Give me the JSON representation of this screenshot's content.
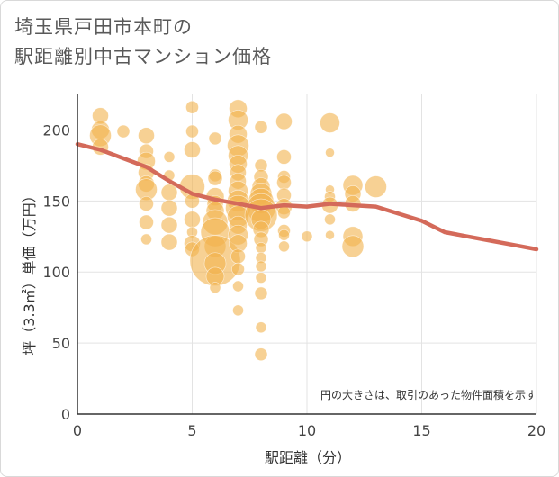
{
  "title_lines": [
    "埼玉県戸田市本町の",
    "駅距離別中古マンション価格"
  ],
  "note": "円の大きさは、取引のあった物件面積を示す",
  "colors": {
    "bubble": "#f2b24c",
    "line": "#d46a5a",
    "grid": "#e3e3e3",
    "axis": "#333333"
  },
  "chart_data": {
    "type": "scatter",
    "xlabel": "駅距離（分）",
    "ylabel": "坪（3.3㎡）単価（万円）",
    "xlim": [
      0,
      20
    ],
    "ylim": [
      0,
      225
    ],
    "x_ticks": [
      0,
      5,
      10,
      15,
      20
    ],
    "y_ticks": [
      0,
      50,
      100,
      150,
      200
    ],
    "grid": true,
    "bubbles": [
      {
        "x": 1,
        "y": 210,
        "r": 9
      },
      {
        "x": 1,
        "y": 200,
        "r": 10
      },
      {
        "x": 1,
        "y": 196,
        "r": 12
      },
      {
        "x": 1,
        "y": 188,
        "r": 9
      },
      {
        "x": 2,
        "y": 199,
        "r": 7
      },
      {
        "x": 3,
        "y": 196,
        "r": 9
      },
      {
        "x": 3,
        "y": 185,
        "r": 8
      },
      {
        "x": 3,
        "y": 178,
        "r": 10
      },
      {
        "x": 3,
        "y": 170,
        "r": 9
      },
      {
        "x": 3,
        "y": 162,
        "r": 9
      },
      {
        "x": 3,
        "y": 158,
        "r": 12
      },
      {
        "x": 3,
        "y": 148,
        "r": 8
      },
      {
        "x": 3,
        "y": 135,
        "r": 8
      },
      {
        "x": 3,
        "y": 123,
        "r": 6
      },
      {
        "x": 4,
        "y": 181,
        "r": 6
      },
      {
        "x": 4,
        "y": 168,
        "r": 6
      },
      {
        "x": 4,
        "y": 156,
        "r": 9
      },
      {
        "x": 4,
        "y": 145,
        "r": 9
      },
      {
        "x": 4,
        "y": 133,
        "r": 9
      },
      {
        "x": 4,
        "y": 121,
        "r": 9
      },
      {
        "x": 5,
        "y": 216,
        "r": 7
      },
      {
        "x": 5,
        "y": 199,
        "r": 7
      },
      {
        "x": 5,
        "y": 186,
        "r": 9
      },
      {
        "x": 5,
        "y": 160,
        "r": 14
      },
      {
        "x": 5,
        "y": 150,
        "r": 8
      },
      {
        "x": 5,
        "y": 137,
        "r": 9
      },
      {
        "x": 5,
        "y": 128,
        "r": 6
      },
      {
        "x": 5,
        "y": 120,
        "r": 9
      },
      {
        "x": 5,
        "y": 116,
        "r": 8
      },
      {
        "x": 6,
        "y": 194,
        "r": 7
      },
      {
        "x": 6,
        "y": 168,
        "r": 7
      },
      {
        "x": 6,
        "y": 166,
        "r": 8
      },
      {
        "x": 6,
        "y": 153,
        "r": 10
      },
      {
        "x": 6,
        "y": 148,
        "r": 9
      },
      {
        "x": 6,
        "y": 143,
        "r": 10
      },
      {
        "x": 6,
        "y": 135,
        "r": 14
      },
      {
        "x": 6,
        "y": 128,
        "r": 16
      },
      {
        "x": 6,
        "y": 118,
        "r": 12
      },
      {
        "x": 6,
        "y": 108,
        "r": 28
      },
      {
        "x": 6,
        "y": 106,
        "r": 12
      },
      {
        "x": 6,
        "y": 97,
        "r": 10
      },
      {
        "x": 6,
        "y": 89,
        "r": 6
      },
      {
        "x": 7,
        "y": 215,
        "r": 10
      },
      {
        "x": 7,
        "y": 207,
        "r": 11
      },
      {
        "x": 7,
        "y": 197,
        "r": 10
      },
      {
        "x": 7,
        "y": 189,
        "r": 12
      },
      {
        "x": 7,
        "y": 182,
        "r": 11
      },
      {
        "x": 7,
        "y": 176,
        "r": 10
      },
      {
        "x": 7,
        "y": 170,
        "r": 9
      },
      {
        "x": 7,
        "y": 164,
        "r": 9
      },
      {
        "x": 7,
        "y": 157,
        "r": 11
      },
      {
        "x": 7,
        "y": 150,
        "r": 12
      },
      {
        "x": 7,
        "y": 145,
        "r": 14
      },
      {
        "x": 7,
        "y": 139,
        "r": 12
      },
      {
        "x": 7,
        "y": 133,
        "r": 10
      },
      {
        "x": 7,
        "y": 126,
        "r": 11
      },
      {
        "x": 7,
        "y": 120,
        "r": 10
      },
      {
        "x": 7,
        "y": 111,
        "r": 8
      },
      {
        "x": 7,
        "y": 102,
        "r": 7
      },
      {
        "x": 7,
        "y": 90,
        "r": 6
      },
      {
        "x": 7,
        "y": 73,
        "r": 6
      },
      {
        "x": 8,
        "y": 202,
        "r": 7
      },
      {
        "x": 8,
        "y": 175,
        "r": 7
      },
      {
        "x": 8,
        "y": 167,
        "r": 8
      },
      {
        "x": 8,
        "y": 160,
        "r": 10
      },
      {
        "x": 8,
        "y": 155,
        "r": 12
      },
      {
        "x": 8,
        "y": 150,
        "r": 14
      },
      {
        "x": 8,
        "y": 145,
        "r": 16
      },
      {
        "x": 8,
        "y": 140,
        "r": 18
      },
      {
        "x": 8,
        "y": 137,
        "r": 11
      },
      {
        "x": 8,
        "y": 130,
        "r": 9
      },
      {
        "x": 8,
        "y": 123,
        "r": 8
      },
      {
        "x": 8,
        "y": 117,
        "r": 6
      },
      {
        "x": 8,
        "y": 110,
        "r": 6
      },
      {
        "x": 8,
        "y": 104,
        "r": 6
      },
      {
        "x": 8,
        "y": 96,
        "r": 6
      },
      {
        "x": 8,
        "y": 85,
        "r": 7
      },
      {
        "x": 8,
        "y": 61,
        "r": 6
      },
      {
        "x": 8,
        "y": 42,
        "r": 7
      },
      {
        "x": 9,
        "y": 206,
        "r": 9
      },
      {
        "x": 9,
        "y": 181,
        "r": 8
      },
      {
        "x": 9,
        "y": 167,
        "r": 7
      },
      {
        "x": 9,
        "y": 163,
        "r": 8
      },
      {
        "x": 9,
        "y": 154,
        "r": 8
      },
      {
        "x": 9,
        "y": 146,
        "r": 9
      },
      {
        "x": 9,
        "y": 142,
        "r": 7
      },
      {
        "x": 9,
        "y": 129,
        "r": 7
      },
      {
        "x": 9,
        "y": 126,
        "r": 6
      },
      {
        "x": 9,
        "y": 118,
        "r": 6
      },
      {
        "x": 10,
        "y": 125,
        "r": 6
      },
      {
        "x": 11,
        "y": 205,
        "r": 11
      },
      {
        "x": 11,
        "y": 184,
        "r": 5
      },
      {
        "x": 11,
        "y": 158,
        "r": 5
      },
      {
        "x": 11,
        "y": 153,
        "r": 6
      },
      {
        "x": 11,
        "y": 147,
        "r": 9
      },
      {
        "x": 11,
        "y": 137,
        "r": 6
      },
      {
        "x": 11,
        "y": 126,
        "r": 5
      },
      {
        "x": 12,
        "y": 161,
        "r": 11
      },
      {
        "x": 12,
        "y": 155,
        "r": 9
      },
      {
        "x": 12,
        "y": 148,
        "r": 9
      },
      {
        "x": 12,
        "y": 125,
        "r": 11
      },
      {
        "x": 12,
        "y": 118,
        "r": 12
      },
      {
        "x": 13,
        "y": 160,
        "r": 12
      }
    ],
    "trend_line": {
      "x": [
        0,
        1,
        2,
        3,
        4,
        5,
        6,
        7,
        8,
        9,
        10,
        11,
        12,
        13,
        14,
        15,
        16,
        17,
        18,
        19,
        20
      ],
      "y": [
        190,
        186,
        180,
        174,
        164,
        155,
        151,
        148,
        145,
        147,
        146,
        148,
        147,
        146,
        141,
        136,
        128,
        125,
        122,
        119,
        116
      ]
    }
  }
}
